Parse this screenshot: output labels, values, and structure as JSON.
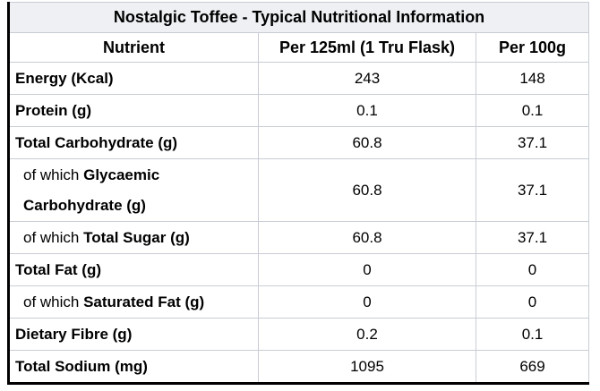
{
  "table": {
    "title": "Nostalgic Toffee - Typical Nutritional Information",
    "columns": [
      "Nutrient",
      "Per 125ml (1 Tru Flask)",
      "Per 100g"
    ],
    "rows": [
      {
        "prefix": "",
        "name": "Energy (Kcal)",
        "per_125ml": "243",
        "per_100g": "148",
        "tall": false
      },
      {
        "prefix": "",
        "name": "Protein (g)",
        "per_125ml": "0.1",
        "per_100g": "0.1",
        "tall": false
      },
      {
        "prefix": "",
        "name": "Total Carbohydrate (g)",
        "per_125ml": "60.8",
        "per_100g": "37.1",
        "tall": false
      },
      {
        "prefix": "of which ",
        "name": "Glycaemic\nCarbohydrate (g)",
        "per_125ml": "60.8",
        "per_100g": "37.1",
        "tall": true
      },
      {
        "prefix": "of which ",
        "name": "Total Sugar (g)",
        "per_125ml": "60.8",
        "per_100g": "37.1",
        "tall": false
      },
      {
        "prefix": "",
        "name": "Total Fat (g)",
        "per_125ml": "0",
        "per_100g": "0",
        "tall": false
      },
      {
        "prefix": "of which ",
        "name": "Saturated Fat (g)",
        "per_125ml": "0",
        "per_100g": "0",
        "tall": false
      },
      {
        "prefix": "",
        "name": "Dietary Fibre (g)",
        "per_125ml": "0.2",
        "per_100g": "0.1",
        "tall": false
      },
      {
        "prefix": "",
        "name": "Total Sodium (mg)",
        "per_125ml": "1095",
        "per_100g": "669",
        "tall": false
      }
    ],
    "colors": {
      "title_bg": "#eef0f3",
      "grid_line": "#c8cdd4",
      "outer_border": "#000000",
      "text": "#000000"
    }
  }
}
